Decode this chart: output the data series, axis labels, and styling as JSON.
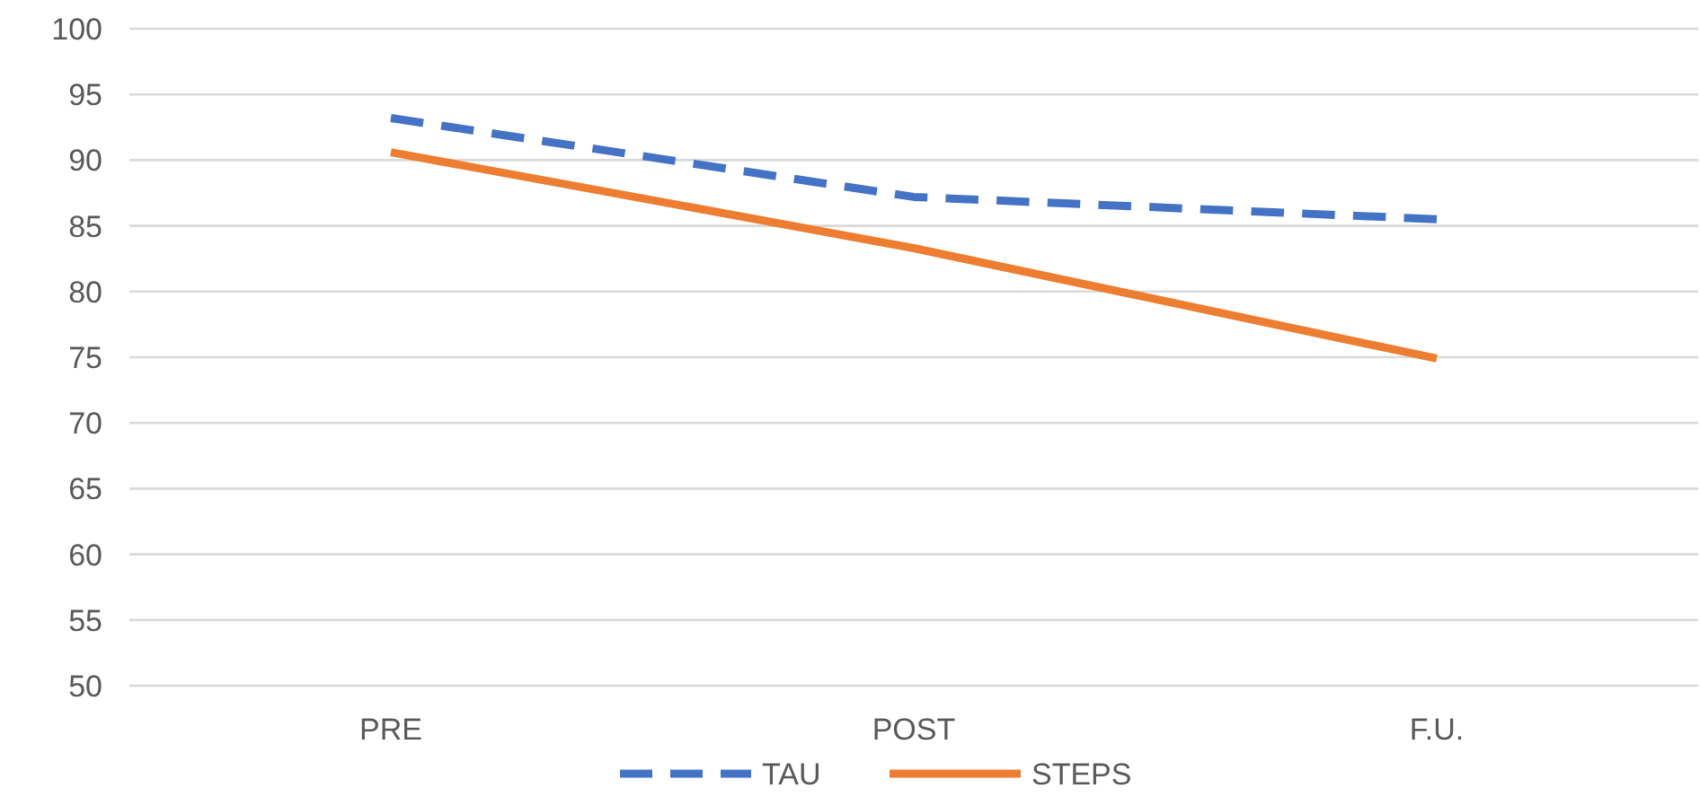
{
  "chart_data": {
    "type": "line",
    "categories": [
      "PRE",
      "POST",
      "F.U."
    ],
    "series": [
      {
        "name": "TAU",
        "color": "#4472c4",
        "values": [
          93.2,
          87.2,
          85.5
        ],
        "line_style": "dashed"
      },
      {
        "name": "STEPS",
        "color": "#ed7d31",
        "values": [
          90.6,
          83.3,
          74.9
        ],
        "line_style": "solid"
      }
    ],
    "ylim": [
      50,
      100
    ],
    "yticks": [
      50,
      55,
      60,
      65,
      70,
      75,
      80,
      85,
      90,
      95,
      100
    ],
    "grid": "y",
    "legend": "bottom",
    "marker": "none"
  }
}
